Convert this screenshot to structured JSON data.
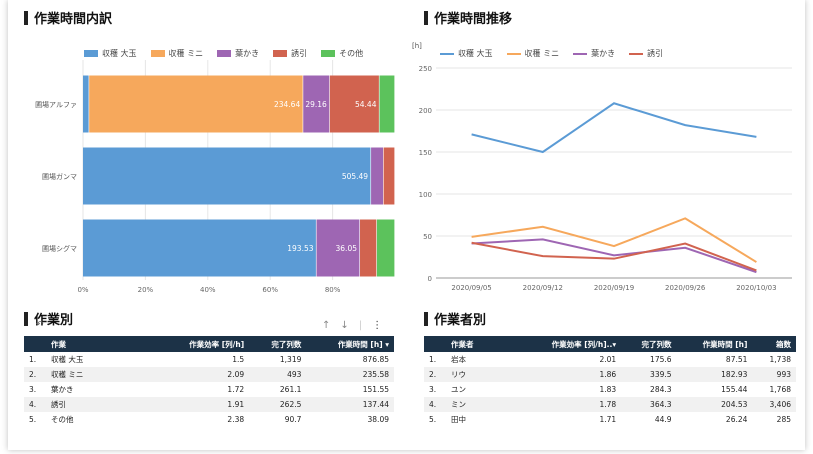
{
  "sections": {
    "bar_title": "作業時間内訳",
    "line_title": "作業時間推移",
    "table1_title": "作業別",
    "table2_title": "作業者別"
  },
  "colors": {
    "blue": "#5b9bd5",
    "orange": "#f6a85c",
    "purple": "#9e66b3",
    "red": "#d1634f",
    "green": "#5cc25c",
    "header": "#1c3247"
  },
  "chart_data": [
    {
      "type": "bar",
      "orientation": "horizontal",
      "stacked": "percent",
      "categories": [
        "圃場アルファ",
        "圃場ガンマ",
        "圃場シグマ"
      ],
      "series": [
        {
          "name": "収穫 大玉",
          "color": "#5b9bd5",
          "values": [
            6.8,
            505.49,
            193.53
          ],
          "labels": [
            "6.8",
            "505.49",
            "193.53"
          ]
        },
        {
          "name": "収穫 ミニ",
          "color": "#f6a85c",
          "values": [
            234.64,
            0,
            0
          ],
          "labels": [
            "234.64",
            "",
            ""
          ]
        },
        {
          "name": "葉かき",
          "color": "#9e66b3",
          "values": [
            29.16,
            22,
            36.05
          ],
          "labels": [
            "29.16",
            "",
            "36.05"
          ]
        },
        {
          "name": "誘引",
          "color": "#d1634f",
          "values": [
            54.44,
            20,
            14
          ],
          "labels": [
            "54.44",
            "",
            "14"
          ]
        },
        {
          "name": "その他",
          "color": "#5cc25c",
          "values": [
            17,
            0,
            15
          ],
          "labels": [
            "",
            "",
            ""
          ]
        }
      ],
      "xticks": [
        "0%",
        "20%",
        "40%",
        "60%",
        "80%"
      ],
      "legend": "top"
    },
    {
      "type": "line",
      "x": [
        "2020/09/05",
        "2020/09/12",
        "2020/09/19",
        "2020/09/26",
        "2020/10/03"
      ],
      "ylabel": "[h]",
      "ylim": [
        0,
        250
      ],
      "yticks": [
        0,
        50,
        100,
        150,
        200,
        250
      ],
      "series": [
        {
          "name": "収穫 大玉",
          "color": "#5b9bd5",
          "values": [
            171,
            150,
            208,
            182,
            168
          ]
        },
        {
          "name": "収穫 ミニ",
          "color": "#f6a85c",
          "values": [
            49,
            61,
            38,
            71,
            19
          ]
        },
        {
          "name": "葉かき",
          "color": "#9e66b3",
          "values": [
            41,
            46,
            27,
            36,
            7
          ]
        },
        {
          "name": "誘引",
          "color": "#d1634f",
          "values": [
            42,
            26,
            23,
            41,
            9
          ]
        }
      ],
      "legend": "top-left",
      "grid": true
    }
  ],
  "table1": {
    "headers": [
      "作業",
      "作業効率 [列/h]",
      "完了列数",
      "作業時間 [h] ▾"
    ],
    "rows": [
      [
        "1.",
        "収穫 大玉",
        "1.5",
        "1,319",
        "876.85"
      ],
      [
        "2.",
        "収穫 ミニ",
        "2.09",
        "493",
        "235.58"
      ],
      [
        "3.",
        "葉かき",
        "1.72",
        "261.1",
        "151.55"
      ],
      [
        "4.",
        "誘引",
        "1.91",
        "262.5",
        "137.44"
      ],
      [
        "5.",
        "その他",
        "2.38",
        "90.7",
        "38.09"
      ]
    ]
  },
  "table2": {
    "headers": [
      "作業者",
      "作業効率 [列/h]..▾",
      "完了列数",
      "作業時間 [h]",
      "箱数"
    ],
    "rows": [
      [
        "1.",
        "岩本",
        "2.01",
        "175.6",
        "87.51",
        "1,738"
      ],
      [
        "2.",
        "リウ",
        "1.86",
        "339.5",
        "182.93",
        "993"
      ],
      [
        "3.",
        "ユン",
        "1.83",
        "284.3",
        "155.44",
        "1,768"
      ],
      [
        "4.",
        "ミン",
        "1.78",
        "364.3",
        "204.53",
        "3,406"
      ],
      [
        "5.",
        "田中",
        "1.71",
        "44.9",
        "26.24",
        "285"
      ]
    ]
  },
  "toolbar": {
    "up": "↑",
    "down": "↓",
    "more": "⋮"
  }
}
